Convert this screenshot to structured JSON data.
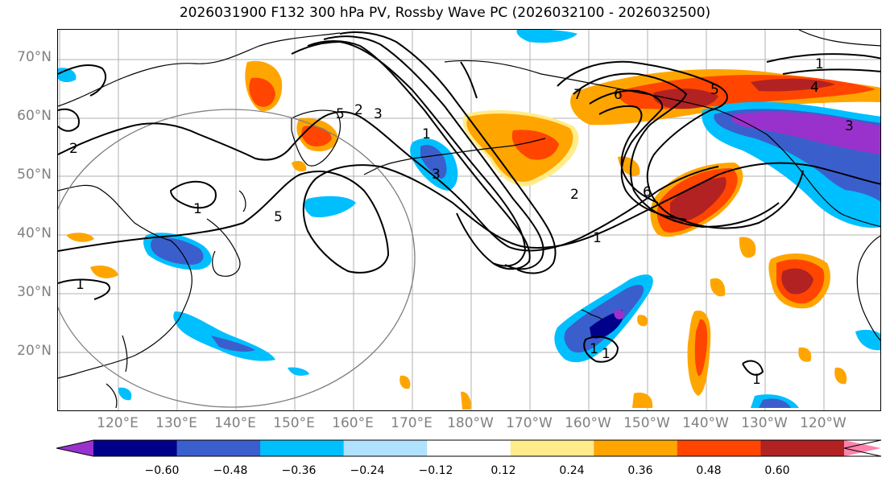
{
  "title": "2026031900 F132 300 hPa PV, Rossby Wave PC (2026032100 - 2026032500)",
  "lat_labels": [
    "70°N",
    "60°N",
    "50°N",
    "40°N",
    "30°N",
    "20°N"
  ],
  "lon_labels": [
    "120°E",
    "130°E",
    "140°E",
    "150°E",
    "160°E",
    "170°E",
    "180°W",
    "170°W",
    "160°W",
    "150°W",
    "140°W",
    "130°W",
    "120°W"
  ],
  "colorbar": {
    "colors": [
      "#9932cc",
      "#00008b",
      "#3a5fcd",
      "#00bfff",
      "#b0e2ff",
      "#ffffff",
      "#ffec8b",
      "#ffa500",
      "#ff4500",
      "#b22222",
      "#ff82ab"
    ],
    "tick_labels": [
      "−0.60",
      "−0.48",
      "−0.36",
      "−0.24",
      "−0.12",
      "0.12",
      "0.24",
      "0.36",
      "0.48",
      "0.60"
    ]
  },
  "contour_labels": [
    "1",
    "1",
    "1",
    "1",
    "1",
    "1",
    "1",
    "2",
    "2",
    "3",
    "3",
    "4",
    "5",
    "5",
    "5",
    "6",
    "6",
    "7",
    "1",
    "2",
    "3"
  ]
}
